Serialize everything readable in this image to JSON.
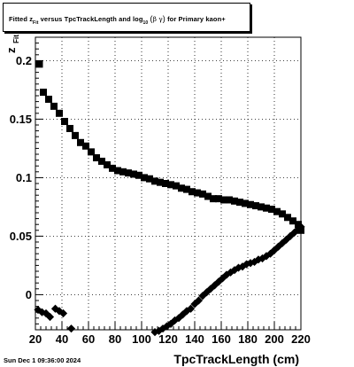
{
  "title": {
    "part1": "Fitted  z",
    "part1_sub": "Fit",
    "part2": "  versus TpcTrackLength and log",
    "part2_sub": "10",
    "paren_open": "(",
    "beta": "β",
    "gamma": "γ",
    "paren_close": ")",
    "part3": " for Primary kaon+"
  },
  "footer": {
    "timestamp": "Sun Dec  1 09:36:00 2024"
  },
  "chart_data": {
    "type": "scatter",
    "xlabel": "TpcTrackLength (cm)",
    "ylabel_main": "z",
    "ylabel_sub": "Fit",
    "xlim": [
      20,
      220
    ],
    "ylim": [
      -0.03,
      0.22
    ],
    "x_ticks": [
      20,
      40,
      60,
      80,
      100,
      120,
      140,
      160,
      180,
      200,
      220
    ],
    "x_tick_labels": [
      "20",
      "40",
      "60",
      "80",
      "100",
      "120",
      "140",
      "160",
      "180",
      "200",
      "220"
    ],
    "y_ticks": [
      0,
      0.05,
      0.1,
      0.15,
      0.2
    ],
    "y_tick_labels": [
      "0",
      "0.05",
      "0.1",
      "0.15",
      "0.2"
    ],
    "grid": true,
    "marker_color": "#000000",
    "series": [
      {
        "marker": "square",
        "x": [
          23,
          26,
          30,
          34,
          38,
          42,
          46,
          50,
          54,
          58,
          62,
          66,
          70,
          74,
          78,
          82,
          86,
          90,
          94,
          98,
          102,
          106,
          110,
          114,
          118,
          122,
          126,
          130,
          134,
          138,
          142,
          146,
          150,
          154,
          158,
          162,
          166,
          170,
          174,
          178,
          182,
          186,
          190,
          194,
          198,
          202,
          206,
          210,
          214,
          218,
          220
        ],
        "y": [
          0.197,
          0.173,
          0.167,
          0.161,
          0.155,
          0.148,
          0.142,
          0.136,
          0.13,
          0.127,
          0.122,
          0.117,
          0.114,
          0.111,
          0.108,
          0.106,
          0.105,
          0.104,
          0.103,
          0.102,
          0.1,
          0.099,
          0.097,
          0.096,
          0.095,
          0.094,
          0.093,
          0.091,
          0.09,
          0.088,
          0.087,
          0.086,
          0.084,
          0.082,
          0.082,
          0.081,
          0.081,
          0.08,
          0.079,
          0.078,
          0.077,
          0.076,
          0.075,
          0.074,
          0.073,
          0.071,
          0.069,
          0.066,
          0.063,
          0.06,
          0.055
        ]
      },
      {
        "marker": "diamond",
        "x": [
          22,
          25,
          28,
          31,
          35,
          38,
          41,
          47,
          110,
          113,
          116,
          119,
          122,
          125,
          128,
          131,
          134,
          137,
          140,
          143,
          146,
          149,
          152,
          155,
          158,
          161,
          164,
          167,
          170,
          173,
          176,
          179,
          182,
          185,
          188,
          191,
          194,
          197,
          200,
          203,
          206,
          209,
          212,
          215,
          218,
          220
        ],
        "y": [
          -0.013,
          -0.015,
          -0.016,
          -0.019,
          -0.012,
          -0.014,
          -0.016,
          -0.029,
          -0.032,
          -0.031,
          -0.029,
          -0.027,
          -0.025,
          -0.022,
          -0.02,
          -0.017,
          -0.014,
          -0.012,
          -0.008,
          -0.005,
          -0.001,
          0.002,
          0.005,
          0.008,
          0.011,
          0.014,
          0.017,
          0.019,
          0.021,
          0.023,
          0.024,
          0.026,
          0.027,
          0.028,
          0.03,
          0.031,
          0.033,
          0.035,
          0.038,
          0.041,
          0.044,
          0.047,
          0.05,
          0.053,
          0.056,
          0.058
        ]
      }
    ]
  }
}
